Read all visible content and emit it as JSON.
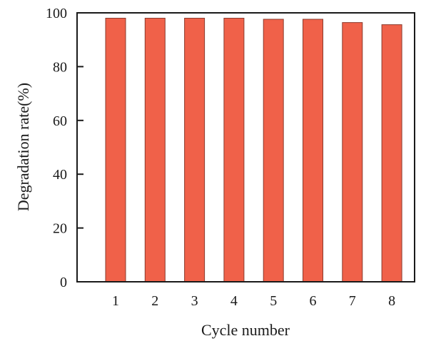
{
  "chart_data": {
    "type": "bar",
    "title": "",
    "xlabel": "Cycle number",
    "ylabel": "Degradation rate(%)",
    "categories": [
      "1",
      "2",
      "3",
      "4",
      "5",
      "6",
      "7",
      "8"
    ],
    "values": [
      98.0,
      98.0,
      98.0,
      98.0,
      97.6,
      97.6,
      96.4,
      95.6
    ],
    "ylim": [
      0,
      100
    ],
    "yticks": [
      "0",
      "20",
      "40",
      "60",
      "80",
      "100"
    ],
    "grid": false,
    "legend": "none",
    "colors": {
      "bar_fill": "#f06149",
      "bar_edge": "#8a3b2e",
      "axis": "#1a1a1a"
    }
  }
}
